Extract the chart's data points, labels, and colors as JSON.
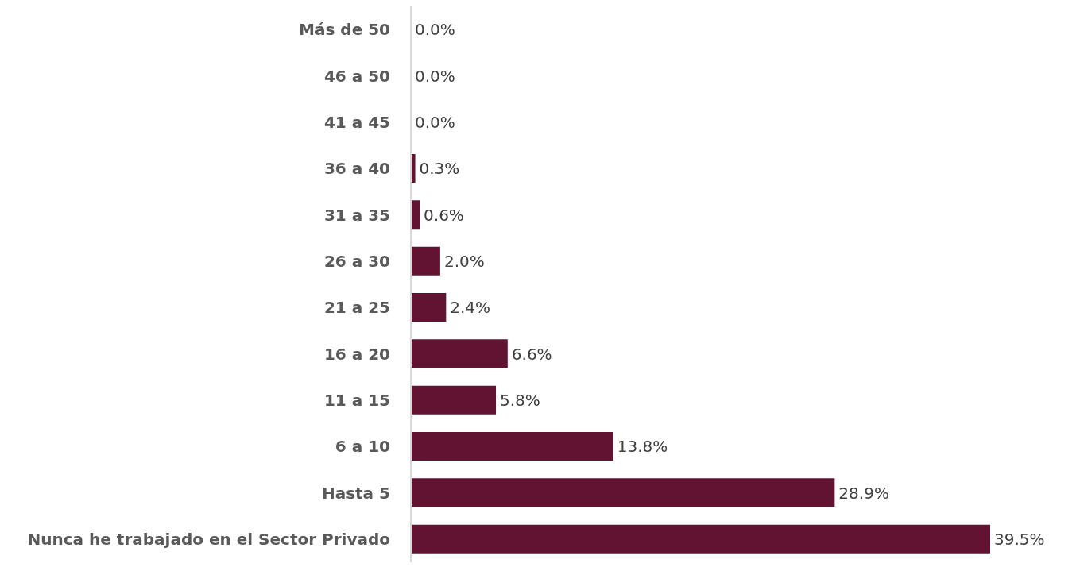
{
  "chart_data": {
    "type": "bar",
    "orientation": "horizontal",
    "categories": [
      "Más de 50",
      "46 a 50",
      "41 a 45",
      "36 a 40",
      "31 a 35",
      "26 a 30",
      "21 a 25",
      "16 a 20",
      "11 a 15",
      "6 a 10",
      "Hasta 5",
      "Nunca he trabajado en el Sector Privado"
    ],
    "values": [
      0.0,
      0.0,
      0.0,
      0.3,
      0.6,
      2.0,
      2.4,
      6.6,
      5.8,
      13.8,
      28.9,
      39.5
    ],
    "value_labels": [
      "0.0%",
      "0.0%",
      "0.0%",
      "0.3%",
      "0.6%",
      "2.0%",
      "2.4%",
      "6.6%",
      "5.8%",
      "13.8%",
      "28.9%",
      "39.5%"
    ],
    "color": "#621332",
    "grid": false,
    "legend": false,
    "tick_labels": "y"
  }
}
